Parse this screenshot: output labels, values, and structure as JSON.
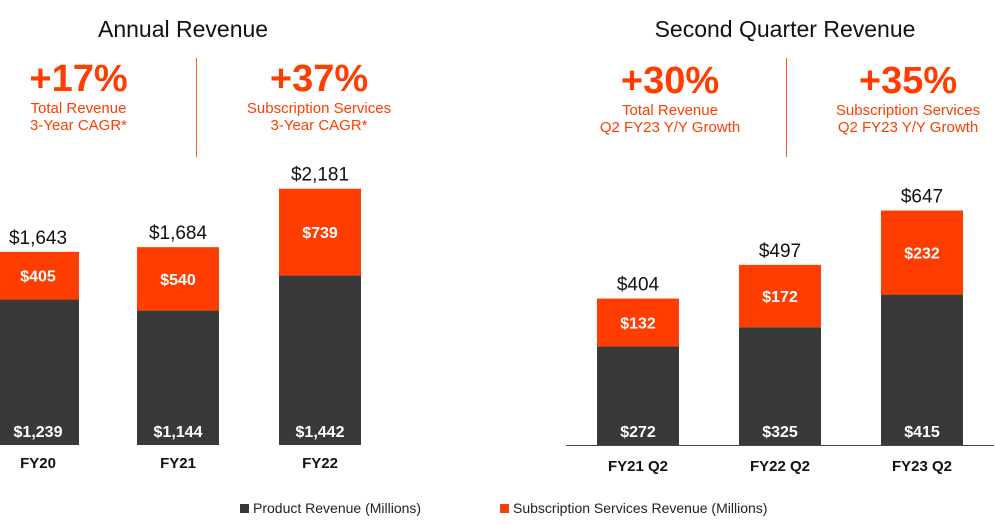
{
  "colors": {
    "product": "#393939",
    "subscription": "#ff3d00",
    "accent": "#ff3d00",
    "axis": "#444444"
  },
  "annual": {
    "title": "Annual Revenue",
    "stats": [
      {
        "value": "+17%",
        "line1": "Total Revenue",
        "line2": "3-Year CAGR*"
      },
      {
        "value": "+37%",
        "line1": "Subscription Services",
        "line2": "3-Year CAGR*"
      }
    ]
  },
  "quarterly": {
    "title": "Second Quarter Revenue",
    "stats": [
      {
        "value": "+30%",
        "line1": "Total Revenue",
        "line2": "Q2 FY23 Y/Y Growth"
      },
      {
        "value": "+35%",
        "line1": "Subscription Services",
        "line2": "Q2 FY23 Y/Y Growth"
      }
    ]
  },
  "legend": {
    "product": "Product Revenue (Millions)",
    "subscription": "Subscription Services Revenue (Millions)"
  },
  "chart_data": [
    {
      "type": "bar",
      "stacked": true,
      "title": "Annual Revenue",
      "categories": [
        "FY20",
        "FY21",
        "FY22"
      ],
      "series": [
        {
          "name": "Product Revenue (Millions)",
          "values": [
            1239,
            1144,
            1442
          ],
          "labels": [
            "$1,239",
            "$1,144",
            "$1,442"
          ]
        },
        {
          "name": "Subscription Services Revenue (Millions)",
          "values": [
            405,
            540,
            739
          ],
          "labels": [
            "$405",
            "$540",
            "$739"
          ]
        }
      ],
      "totals": [
        1643,
        1684,
        2181
      ],
      "total_labels": [
        "$1,643",
        "$1,684",
        "$2,181"
      ],
      "ylim": [
        0,
        2400
      ]
    },
    {
      "type": "bar",
      "stacked": true,
      "title": "Second Quarter Revenue",
      "categories": [
        "FY21 Q2",
        "FY22 Q2",
        "FY23 Q2"
      ],
      "series": [
        {
          "name": "Product Revenue (Millions)",
          "values": [
            272,
            325,
            415
          ],
          "labels": [
            "$272",
            "$325",
            "$415"
          ]
        },
        {
          "name": "Subscription Services Revenue (Millions)",
          "values": [
            132,
            172,
            232
          ],
          "labels": [
            "$132",
            "$172",
            "$232"
          ]
        }
      ],
      "totals": [
        404,
        497,
        647
      ],
      "total_labels": [
        "$404",
        "$497",
        "$647"
      ],
      "ylim": [
        0,
        740
      ]
    }
  ]
}
